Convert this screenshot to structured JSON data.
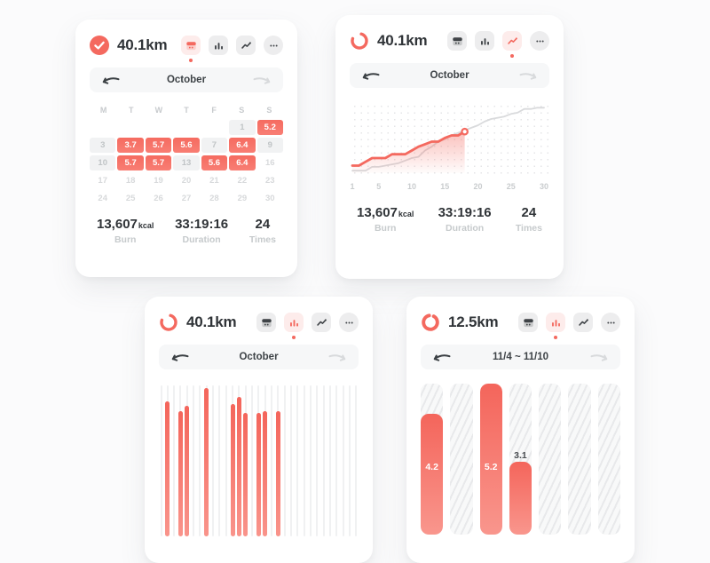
{
  "page": {
    "bg": "#fbfbfc"
  },
  "colors": {
    "accent": "#f4695f",
    "accent_light": "#f98f85",
    "active_icon_bg": "#fdeceb",
    "ink": "#303438",
    "muted_text": "#c6cacc",
    "icon_bg": "#ededee",
    "nav_bg": "#f6f7f8",
    "rest_cell_bg": "#f1f2f3",
    "future_text": "#d7d9db",
    "previous_line": "#d9dadc"
  },
  "view_icon_names": [
    "calendar-view-icon",
    "bar-chart-view-icon",
    "line-chart-view-icon",
    "more-icon"
  ],
  "cards": [
    {
      "distance": "40.1km",
      "status_icon": "goal-complete-check",
      "active_view": "calendar",
      "nav": {
        "label": "October",
        "prev_enabled": true,
        "next_enabled": false
      },
      "stats": [
        {
          "value": "13,607",
          "unit": "kcal",
          "label": "Burn"
        },
        {
          "value": "33:19:16",
          "unit": "",
          "label": "Duration"
        },
        {
          "value": "24",
          "unit": "",
          "label": "Times"
        }
      ]
    },
    {
      "distance": "40.1km",
      "status_icon": "progress-ring",
      "active_view": "line",
      "nav": {
        "label": "October",
        "prev_enabled": true,
        "next_enabled": false
      },
      "stats": [
        {
          "value": "13,607",
          "unit": "kcal",
          "label": "Burn"
        },
        {
          "value": "33:19:16",
          "unit": "",
          "label": "Duration"
        },
        {
          "value": "24",
          "unit": "",
          "label": "Times"
        }
      ]
    },
    {
      "distance": "40.1km",
      "status_icon": "progress-ring",
      "active_view": "bar",
      "nav": {
        "label": "October",
        "prev_enabled": true,
        "next_enabled": false
      }
    },
    {
      "distance": "12.5km",
      "status_icon": "progress-ring",
      "active_view": "bar",
      "nav": {
        "label": "11/4 ~ 11/10",
        "prev_enabled": true,
        "next_enabled": false
      }
    }
  ],
  "chart_data": [
    {
      "type": "heatmap",
      "card": 0,
      "title": "October daily distance calendar (km)",
      "weekday_headers": [
        "M",
        "T",
        "W",
        "T",
        "F",
        "S",
        "S"
      ],
      "rows": [
        [
          {
            "t": "",
            "s": "empty"
          },
          {
            "t": "",
            "s": "empty"
          },
          {
            "t": "",
            "s": "empty"
          },
          {
            "t": "",
            "s": "empty"
          },
          {
            "t": "",
            "s": "empty"
          },
          {
            "t": "1",
            "s": "rest"
          },
          {
            "t": "5.2",
            "s": "active"
          }
        ],
        [
          {
            "t": "3",
            "s": "rest"
          },
          {
            "t": "3.7",
            "s": "active"
          },
          {
            "t": "5.7",
            "s": "active"
          },
          {
            "t": "5.6",
            "s": "active"
          },
          {
            "t": "7",
            "s": "rest"
          },
          {
            "t": "6.4",
            "s": "active"
          },
          {
            "t": "9",
            "s": "rest"
          }
        ],
        [
          {
            "t": "10",
            "s": "rest"
          },
          {
            "t": "5.7",
            "s": "active"
          },
          {
            "t": "5.7",
            "s": "active"
          },
          {
            "t": "13",
            "s": "rest"
          },
          {
            "t": "5.6",
            "s": "active"
          },
          {
            "t": "6.4",
            "s": "active"
          },
          {
            "t": "16",
            "s": "future"
          }
        ],
        [
          {
            "t": "17",
            "s": "future"
          },
          {
            "t": "18",
            "s": "future"
          },
          {
            "t": "19",
            "s": "future"
          },
          {
            "t": "20",
            "s": "future"
          },
          {
            "t": "21",
            "s": "future"
          },
          {
            "t": "22",
            "s": "future"
          },
          {
            "t": "23",
            "s": "future"
          }
        ],
        [
          {
            "t": "24",
            "s": "future"
          },
          {
            "t": "25",
            "s": "future"
          },
          {
            "t": "26",
            "s": "future"
          },
          {
            "t": "27",
            "s": "future"
          },
          {
            "t": "28",
            "s": "future"
          },
          {
            "t": "29",
            "s": "future"
          },
          {
            "t": "30",
            "s": "future"
          }
        ]
      ]
    },
    {
      "type": "line",
      "card": 1,
      "title": "October cumulative distance vs previous period",
      "x_ticks": [
        "1",
        "5",
        "10",
        "15",
        "20",
        "25",
        "30"
      ],
      "x_range": [
        1,
        30
      ],
      "ylim": [
        0,
        55
      ],
      "goal_value": 47,
      "goal_line_style": "dashed-gradient",
      "grid": "dotted",
      "series": [
        {
          "name": "previous-cumulative",
          "color": "#d9dadc",
          "points": [
            [
              1,
              2
            ],
            [
              3,
              2
            ],
            [
              4,
              5
            ],
            [
              5,
              5
            ],
            [
              6,
              6
            ],
            [
              7,
              7
            ],
            [
              8,
              8
            ],
            [
              9,
              10
            ],
            [
              10,
              12
            ],
            [
              11,
              13
            ],
            [
              12,
              18
            ],
            [
              13,
              21
            ],
            [
              14,
              25
            ],
            [
              15,
              27
            ],
            [
              16,
              30
            ],
            [
              17,
              32
            ],
            [
              18,
              34
            ],
            [
              19,
              36
            ],
            [
              20,
              38
            ],
            [
              21,
              41
            ],
            [
              22,
              43
            ],
            [
              23,
              44
            ],
            [
              24,
              45
            ],
            [
              25,
              47
            ],
            [
              26,
              48
            ],
            [
              27,
              51
            ],
            [
              28,
              51
            ],
            [
              29,
              52
            ],
            [
              30,
              52
            ]
          ]
        },
        {
          "name": "current-cumulative",
          "color": "#f4695f",
          "area_fill": true,
          "end_marker": true,
          "points": [
            [
              1,
              6
            ],
            [
              2,
              6
            ],
            [
              3,
              9
            ],
            [
              4,
              12
            ],
            [
              5,
              12
            ],
            [
              6,
              12
            ],
            [
              7,
              15
            ],
            [
              8,
              15
            ],
            [
              9,
              15
            ],
            [
              10,
              18
            ],
            [
              11,
              21
            ],
            [
              12,
              23
            ],
            [
              13,
              25
            ],
            [
              14,
              25
            ],
            [
              15,
              28
            ],
            [
              16,
              30
            ],
            [
              17,
              30
            ],
            [
              18,
              33
            ]
          ]
        }
      ]
    },
    {
      "type": "bar",
      "card": 2,
      "title": "October daily distance bars (km)",
      "x_range": [
        1,
        31
      ],
      "total_columns": 31,
      "ymax": 6.5,
      "bars": [
        {
          "day": 2,
          "value": 5.8
        },
        {
          "day": 4,
          "value": 5.4
        },
        {
          "day": 5,
          "value": 5.6
        },
        {
          "day": 8,
          "value": 6.4
        },
        {
          "day": 12,
          "value": 5.7
        },
        {
          "day": 13,
          "value": 6.0
        },
        {
          "day": 14,
          "value": 5.3
        },
        {
          "day": 16,
          "value": 5.3
        },
        {
          "day": 17,
          "value": 5.4
        },
        {
          "day": 19,
          "value": 5.4
        }
      ]
    },
    {
      "type": "bar",
      "card": 3,
      "title": "Week 11/4 ~ 11/10 daily distance (km)",
      "total_columns": 7,
      "ymax": 5.2,
      "bars": [
        {
          "col": 1,
          "value": 4.2,
          "label": "4.2",
          "height_pct": 80
        },
        {
          "col": 3,
          "value": 5.2,
          "label": "5.2",
          "height_pct": 100
        },
        {
          "col": 4,
          "value": 3.1,
          "label": "3.1",
          "height_pct": 48
        }
      ]
    }
  ]
}
